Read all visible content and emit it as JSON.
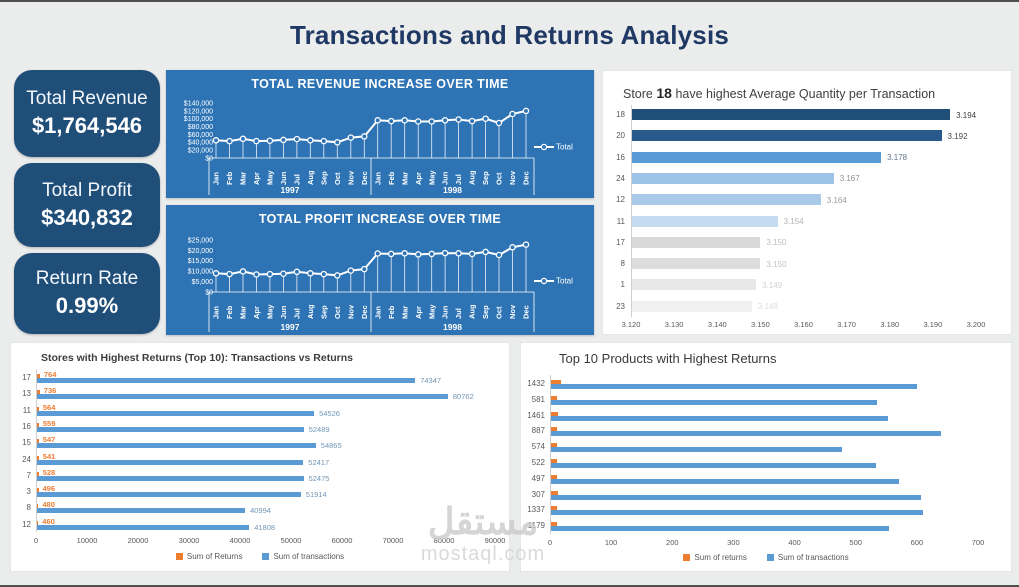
{
  "page": {
    "title": "Transactions and Returns Analysis",
    "watermark_arabic": "مستقل",
    "watermark_domain": "mostaql.com"
  },
  "colors": {
    "page_bg": "#ebecec",
    "card_navy": "#1f4e79",
    "panel_blue": "#2e74b5",
    "title_navy": "#1f3864",
    "bar_blue": "#5b9bd5",
    "bar_orange": "#ed7d31",
    "label_blue": "#7396b5",
    "label_orange": "#ed7d31",
    "tick_gray": "#595959",
    "axis_gray": "#cfcfcf"
  },
  "kpis": [
    {
      "label": "Total Revenue",
      "value": "$1,764,546"
    },
    {
      "label": "Total Profit",
      "value": "$340,832"
    },
    {
      "label": "Return Rate",
      "value": "0.99%"
    }
  ],
  "chart_data": [
    {
      "type": "line",
      "title": "TOTAL REVENUE INCREASE OVER TIME",
      "legend": "Total",
      "months": [
        "Jan",
        "Feb",
        "Mar",
        "Apr",
        "May",
        "Jun",
        "Jul",
        "Aug",
        "Sep",
        "Oct",
        "Nov",
        "Dec"
      ],
      "years": [
        "1997",
        "1998"
      ],
      "ymax": 140000,
      "y_tick_labels": [
        "$140,000",
        "$120,000",
        "$100,000",
        "$80,000",
        "$60,000",
        "$40,000",
        "$20,000",
        "$0"
      ],
      "values": [
        45000,
        43000,
        49000,
        43000,
        44000,
        46000,
        48000,
        45000,
        43000,
        40000,
        52000,
        55000,
        96000,
        94000,
        96000,
        93000,
        93000,
        96000,
        98000,
        94000,
        100000,
        89000,
        112000,
        120000
      ]
    },
    {
      "type": "line",
      "title": "TOTAL PROFIT INCREASE OVER TIME",
      "legend": "Total",
      "months": [
        "Jan",
        "Feb",
        "Mar",
        "Apr",
        "May",
        "Jun",
        "Jul",
        "Aug",
        "Sep",
        "Oct",
        "Nov",
        "Dec"
      ],
      "years": [
        "1997",
        "1998"
      ],
      "ymax": 25000,
      "y_tick_labels": [
        "$25,000",
        "$20,000",
        "$15,000",
        "$10,000",
        "$5,000",
        "$0"
      ],
      "values": [
        9000,
        8600,
        9900,
        8400,
        8600,
        8800,
        9700,
        9000,
        8600,
        8000,
        10300,
        11000,
        18500,
        18300,
        18600,
        18100,
        18300,
        18700,
        18600,
        18300,
        19300,
        17800,
        21500,
        22800
      ]
    },
    {
      "type": "bar",
      "title_prefix": "Store",
      "title_bold": "18",
      "title_suffix": "have highest Average Quantity per Transaction",
      "categories": [
        "18",
        "20",
        "16",
        "24",
        "12",
        "11",
        "17",
        "8",
        "1",
        "23"
      ],
      "values": [
        3.194,
        3.192,
        3.178,
        3.167,
        3.164,
        3.154,
        3.15,
        3.15,
        3.149,
        3.148
      ],
      "labels": [
        "3.194",
        "3.192",
        "3.178",
        "3.167",
        "3.164",
        "3.154",
        "3.150",
        "3.150",
        "3.149",
        "3.148"
      ],
      "bar_colors": [
        "#1f4e79",
        "#2a5a8c",
        "#5b9bd5",
        "#9dc3e6",
        "#a9cbe9",
        "#c5dcf0",
        "#d9d9d9",
        "#dddddd",
        "#e7e7e7",
        "#f0f0f0"
      ],
      "label_colors": [
        "#404040",
        "#454545",
        "#62778c",
        "#8f8f8f",
        "#9b9b9b",
        "#b3b3b3",
        "#bdbdbd",
        "#c3c3c3",
        "#d2d2d2",
        "#dcdcdc"
      ],
      "xlim": [
        3.12,
        3.2
      ],
      "x_ticks": [
        "3.120",
        "3.130",
        "3.140",
        "3.150",
        "3.160",
        "3.170",
        "3.180",
        "3.190",
        "3.200"
      ]
    },
    {
      "type": "bar-dual",
      "title": "Stores with Highest Returns (Top 10): Transactions vs Returns",
      "categories": [
        "17",
        "13",
        "11",
        "16",
        "15",
        "24",
        "7",
        "3",
        "8",
        "12"
      ],
      "series": [
        {
          "name": "Sum of Returns",
          "color": "#ed7d31",
          "values": [
            764,
            736,
            564,
            559,
            547,
            541,
            528,
            496,
            480,
            460
          ]
        },
        {
          "name": "Sum of transactions",
          "color": "#5b9bd5",
          "values": [
            74347,
            80762,
            54526,
            52489,
            54865,
            52417,
            52475,
            51914,
            40994,
            41808
          ]
        }
      ],
      "xlim": [
        0,
        90000
      ],
      "x_ticks": [
        "0",
        "10000",
        "20000",
        "30000",
        "40000",
        "50000",
        "60000",
        "70000",
        "80000",
        "90000"
      ],
      "show_value_labels": true
    },
    {
      "type": "bar-dual",
      "title": "Top 10 Products with Highest Returns",
      "categories": [
        "1432",
        "581",
        "1461",
        "887",
        "574",
        "522",
        "497",
        "307",
        "1337",
        "1179"
      ],
      "series": [
        {
          "name": "Sum of returns",
          "color": "#ed7d31",
          "values": [
            18,
            12,
            13,
            12,
            12,
            12,
            12,
            13,
            12,
            12
          ]
        },
        {
          "name": "Sum of transactions",
          "color": "#5b9bd5",
          "values": [
            600,
            535,
            553,
            639,
            477,
            533,
            571,
            607,
            610,
            555
          ]
        }
      ],
      "xlim": [
        0,
        700
      ],
      "x_ticks": [
        "0",
        "100",
        "200",
        "300",
        "400",
        "500",
        "600",
        "700"
      ],
      "show_value_labels": false
    }
  ]
}
